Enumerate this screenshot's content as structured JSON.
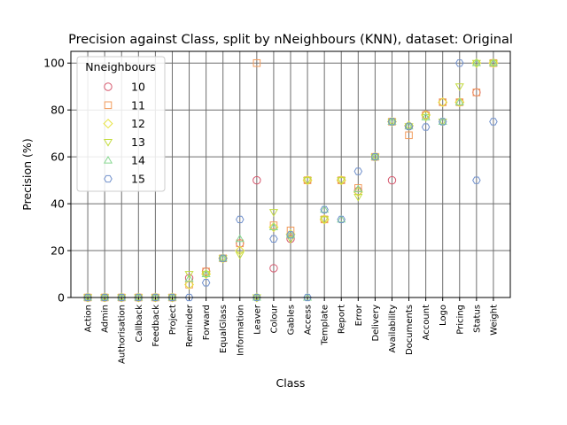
{
  "chart_data": {
    "type": "scatter",
    "title": "Precision against Class, split by nNeighbours (KNN), dataset: Original",
    "xlabel": "Class",
    "ylabel": "Precision (%)",
    "ylim": [
      0,
      105
    ],
    "yticks": [
      0,
      20,
      40,
      60,
      80,
      100
    ],
    "grid": true,
    "legend": {
      "title": "Nneighbours",
      "placement": "top-left"
    },
    "categories": [
      "Action",
      "Admin",
      "Authorisation",
      "Callback",
      "Feedback",
      "Project",
      "Reminder",
      "Forward",
      "EqualGlass",
      "Information",
      "Leaver",
      "Colour",
      "Gables",
      "Access",
      "Template",
      "Report",
      "Error",
      "Delivery",
      "Availability",
      "Documents",
      "Account",
      "Logo",
      "Pricing",
      "Status",
      "Weight"
    ],
    "series": [
      {
        "name": "10",
        "color": "#d6586e",
        "marker": "circle",
        "values": [
          0,
          0,
          0,
          0,
          0,
          0,
          8.3,
          11.1,
          16.7,
          23.1,
          50,
          12.5,
          25,
          50,
          33.3,
          50,
          45.5,
          60,
          50,
          73,
          78,
          83.3,
          83.3,
          87.5,
          100
        ]
      },
      {
        "name": "11",
        "color": "#f29b5b",
        "marker": "square",
        "values": [
          0,
          0,
          0,
          0,
          0,
          0,
          5.5,
          11.1,
          16.7,
          23.1,
          100,
          30.8,
          28.6,
          50,
          33.3,
          50,
          46.7,
          60,
          75,
          69.2,
          77.8,
          83.3,
          83.3,
          87.5,
          100
        ]
      },
      {
        "name": "12",
        "color": "#e8e340",
        "marker": "diamond",
        "values": [
          0,
          0,
          0,
          0,
          0,
          0,
          5.5,
          10,
          16.7,
          20,
          0,
          30,
          27,
          50,
          33.3,
          50,
          45,
          60,
          75,
          73.3,
          77.8,
          83.3,
          83.3,
          100,
          100
        ]
      },
      {
        "name": "13",
        "color": "#c4dc3f",
        "marker": "triangle-down",
        "values": [
          0,
          0,
          0,
          0,
          0,
          0,
          10,
          10,
          16.7,
          18.2,
          0,
          36.4,
          25,
          50,
          33.3,
          50,
          42.9,
          60,
          75,
          73,
          76.9,
          75,
          90,
          100,
          100
        ]
      },
      {
        "name": "14",
        "color": "#88d891",
        "marker": "triangle-up",
        "values": [
          0,
          0,
          0,
          0,
          0,
          0,
          8,
          10,
          16.7,
          25,
          0,
          30,
          26.7,
          0,
          37.5,
          33.3,
          46.2,
          60,
          75,
          73,
          76.9,
          75,
          83.3,
          100,
          100
        ]
      },
      {
        "name": "15",
        "color": "#7090cc",
        "marker": "hexagon",
        "values": [
          0,
          0,
          0,
          0,
          0,
          0,
          0,
          6.3,
          16.7,
          33.3,
          0,
          25,
          26.7,
          0,
          37.5,
          33.3,
          53.8,
          60,
          75,
          73,
          72.7,
          75,
          100,
          50,
          75
        ]
      }
    ]
  }
}
